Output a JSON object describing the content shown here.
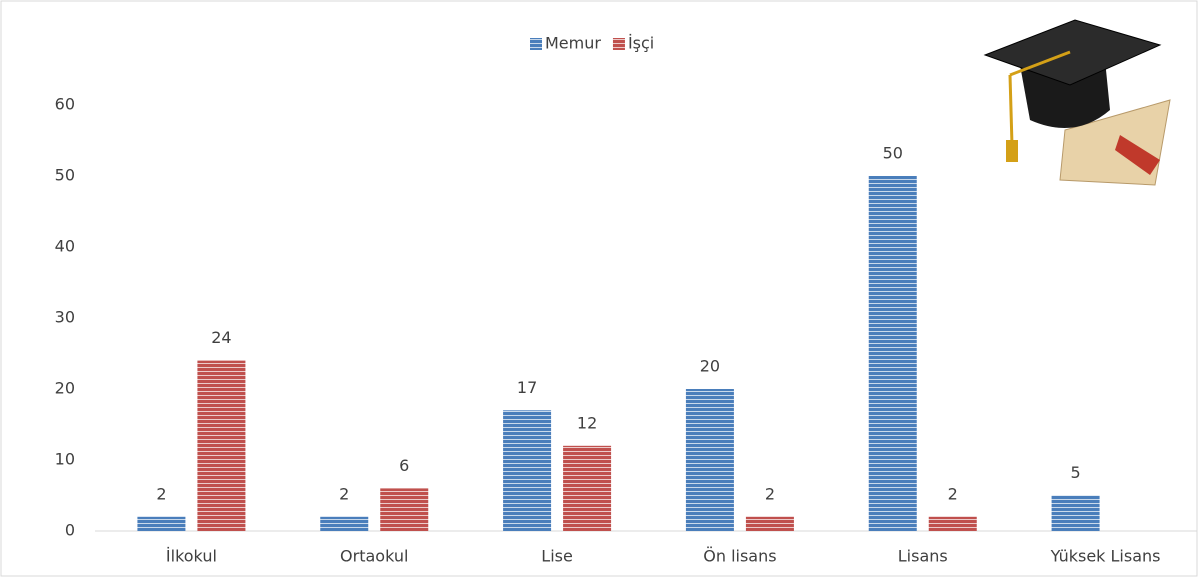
{
  "chart_data": {
    "type": "bar",
    "categories": [
      "İlkokul",
      "Ortaokul",
      "Lise",
      "Ön lisans",
      "Lisans",
      "Yüksek Lisans"
    ],
    "series": [
      {
        "name": "Memur",
        "color": "#4a7ebb",
        "values": [
          2,
          2,
          17,
          20,
          50,
          5
        ]
      },
      {
        "name": "İşçi",
        "color": "#c0504d",
        "values": [
          24,
          6,
          12,
          2,
          2,
          null
        ]
      }
    ],
    "ylim": [
      0,
      60
    ],
    "yticks": [
      0,
      10,
      20,
      30,
      40,
      50,
      60
    ],
    "grid": false,
    "legend": "top"
  }
}
